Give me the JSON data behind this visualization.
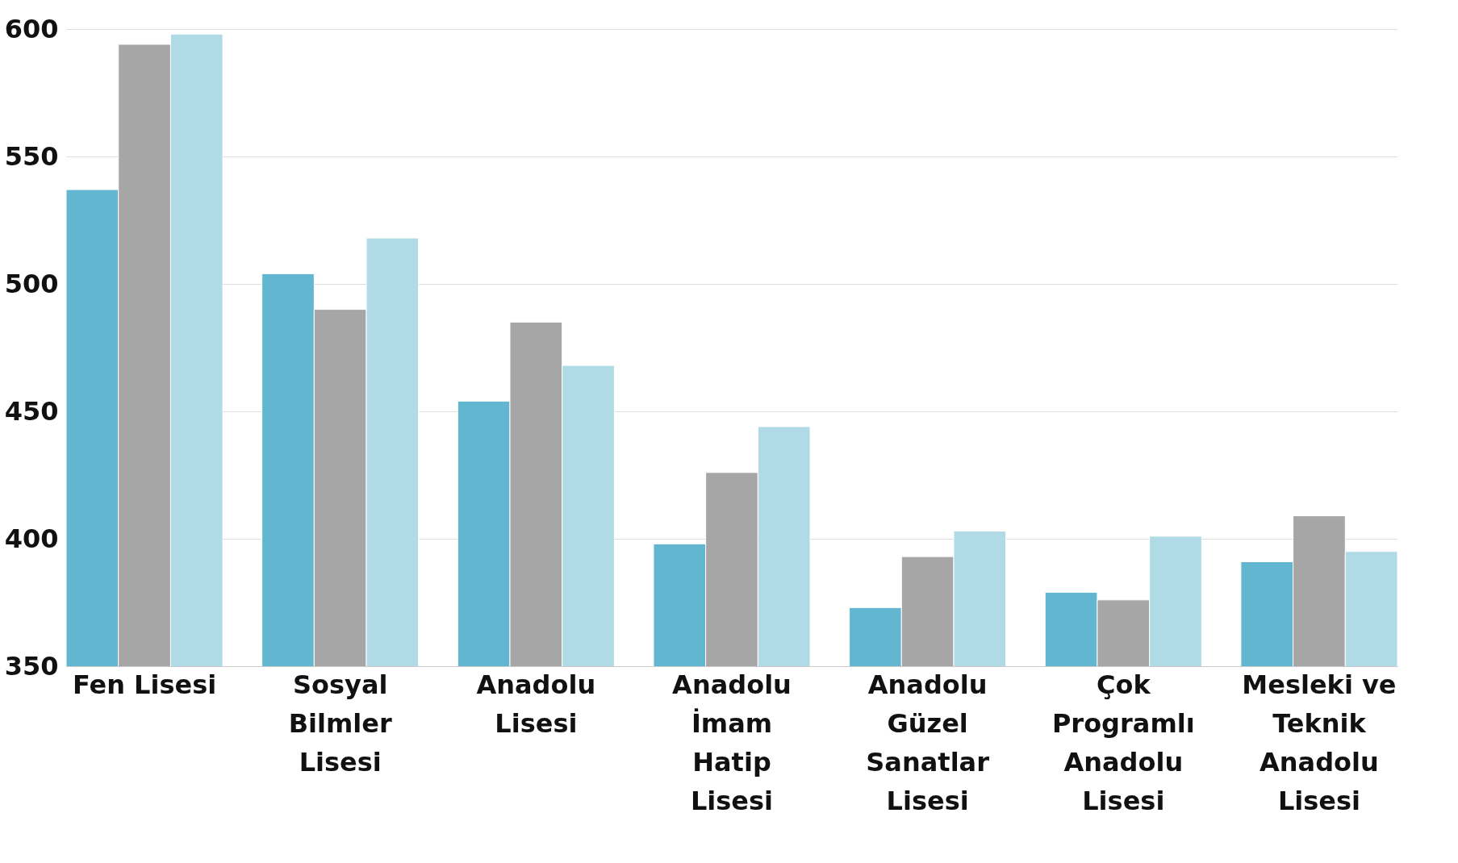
{
  "chart_data": {
    "type": "bar",
    "categories": [
      "Fen Lisesi",
      "Sosyal\nBilmler\nLisesi",
      "Anadolu\nLisesi",
      "Anadolu\nİmam\nHatip\nLisesi",
      "Anadolu\nGüzel\nSanatlar\nLisesi",
      "Çok\nProgramlı\nAnadolu\nLisesi",
      "Mesleki ve\nTeknik\nAnadolu\nLisesi"
    ],
    "series": [
      {
        "color": "#62b6cf",
        "values": [
          537,
          504,
          454,
          398,
          373,
          379,
          391
        ]
      },
      {
        "color": "#a6a6a6",
        "values": [
          594,
          490,
          485,
          426,
          393,
          376,
          409
        ]
      },
      {
        "color": "#b0dbe6",
        "values": [
          598,
          518,
          468,
          444,
          403,
          401,
          395
        ]
      }
    ],
    "ylim": [
      350,
      600
    ],
    "yticks": [
      350,
      400,
      450,
      500,
      550,
      600
    ],
    "grid": "y",
    "legend": false
  }
}
